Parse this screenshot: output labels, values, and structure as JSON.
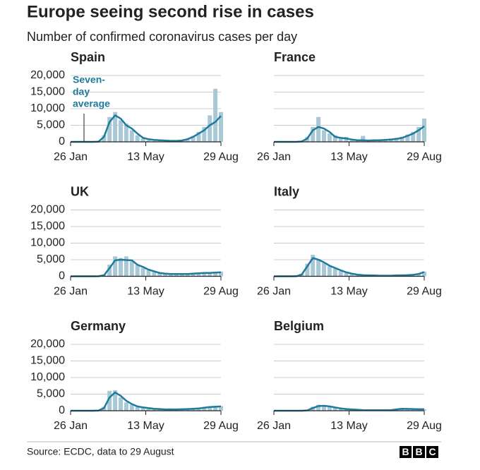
{
  "title": "Europe seeing second rise in cases",
  "subtitle": "Number of confirmed coronavirus cases per day",
  "source": "Source: ECDC, data to 29 August",
  "logo": [
    "B",
    "B",
    "C"
  ],
  "chart_data": [
    {
      "type": "bar-line",
      "title": "Spain",
      "annotation": [
        "Seven-",
        "day",
        "average"
      ],
      "x": [
        0,
        8,
        16,
        24,
        32,
        40,
        48,
        56,
        64,
        72,
        80,
        88,
        96,
        104,
        112,
        120,
        128,
        136,
        144,
        152,
        160,
        168,
        176,
        184,
        192,
        200,
        208,
        216
      ],
      "series": [
        {
          "color": "#a9c8d6",
          "values": [
            0,
            0,
            0,
            0,
            0,
            100,
            2000,
            7500,
            9000,
            6500,
            5500,
            3500,
            2000,
            1000,
            500,
            300,
            200,
            500,
            300,
            200,
            400,
            900,
            1800,
            3000,
            4500,
            8000,
            16000,
            9000
          ]
        },
        {
          "name": "Seven-day average",
          "color": "#1f7a9b",
          "values": [
            0,
            0,
            0,
            0,
            0,
            50,
            1500,
            6000,
            8000,
            7000,
            5000,
            4000,
            2500,
            1200,
            800,
            600,
            500,
            400,
            300,
            300,
            400,
            800,
            1500,
            2500,
            3500,
            5000,
            6000,
            7800
          ]
        }
      ],
      "xlim": [
        0,
        216
      ],
      "xticks": [
        {
          "value": 0,
          "label": "26 Jan"
        },
        {
          "value": 108,
          "label": "13 May"
        },
        {
          "value": 216,
          "label": "29 Aug"
        }
      ],
      "ylim": [
        0,
        20000
      ],
      "yticks": [
        0,
        {
          "value": 5000,
          "label": "5,000"
        },
        {
          "value": 10000,
          "label": "10,000"
        },
        {
          "value": 15000,
          "label": "15,000"
        },
        {
          "value": 20000,
          "label": "20,000"
        }
      ],
      "show_ytick_labels": true,
      "grid": true
    },
    {
      "type": "bar-line",
      "title": "France",
      "x": [
        0,
        8,
        16,
        24,
        32,
        40,
        48,
        56,
        64,
        72,
        80,
        88,
        96,
        104,
        112,
        120,
        128,
        136,
        144,
        152,
        160,
        168,
        176,
        184,
        192,
        200,
        208,
        216
      ],
      "series": [
        {
          "color": "#a9c8d6",
          "values": [
            0,
            0,
            0,
            0,
            0,
            200,
            1500,
            4500,
            7500,
            3500,
            2500,
            2000,
            1000,
            1500,
            500,
            300,
            1800,
            300,
            600,
            400,
            800,
            1000,
            1200,
            1500,
            2200,
            3000,
            4500,
            7000
          ]
        },
        {
          "name": "Seven-day average",
          "color": "#1f7a9b",
          "values": [
            0,
            0,
            0,
            0,
            0,
            100,
            1000,
            3500,
            4500,
            4000,
            3000,
            1500,
            1200,
            1000,
            700,
            500,
            500,
            400,
            500,
            500,
            600,
            700,
            900,
            1200,
            1800,
            2500,
            3500,
            4700
          ]
        }
      ],
      "xlim": [
        0,
        216
      ],
      "xticks": [
        {
          "value": 0,
          "label": "26 Jan"
        },
        {
          "value": 108,
          "label": "13 May"
        },
        {
          "value": 216,
          "label": "29 Aug"
        }
      ],
      "ylim": [
        0,
        20000
      ],
      "yticks": [
        0,
        5000,
        10000,
        15000,
        20000
      ],
      "show_ytick_labels": false,
      "grid": true
    },
    {
      "type": "bar-line",
      "title": "UK",
      "x": [
        0,
        8,
        16,
        24,
        32,
        40,
        48,
        56,
        64,
        72,
        80,
        88,
        96,
        104,
        112,
        120,
        128,
        136,
        144,
        152,
        160,
        168,
        176,
        184,
        192,
        200,
        208,
        216
      ],
      "series": [
        {
          "color": "#a9c8d6",
          "values": [
            0,
            0,
            0,
            0,
            0,
            50,
            500,
            3500,
            6000,
            5500,
            6000,
            4500,
            3500,
            2500,
            1800,
            1400,
            900,
            700,
            600,
            700,
            600,
            800,
            800,
            900,
            1000,
            900,
            1200,
            1400
          ]
        },
        {
          "name": "Seven-day average",
          "color": "#1f7a9b",
          "values": [
            0,
            0,
            0,
            0,
            0,
            20,
            300,
            2500,
            4800,
            5000,
            4900,
            4800,
            3500,
            2800,
            2000,
            1500,
            1000,
            800,
            700,
            700,
            700,
            700,
            800,
            900,
            1000,
            1000,
            1100,
            1200
          ]
        }
      ],
      "xlim": [
        0,
        216
      ],
      "xticks": [
        {
          "value": 0,
          "label": "26 Jan"
        },
        {
          "value": 108,
          "label": "13 May"
        },
        {
          "value": 216,
          "label": "29 Aug"
        }
      ],
      "ylim": [
        0,
        20000
      ],
      "yticks": [
        0,
        {
          "value": 5000,
          "label": "5,000"
        },
        {
          "value": 10000,
          "label": "10,000"
        },
        {
          "value": 15000,
          "label": "15,000"
        },
        {
          "value": 20000,
          "label": "20,000"
        }
      ],
      "show_ytick_labels": true,
      "grid": true
    },
    {
      "type": "bar-line",
      "title": "Italy",
      "x": [
        0,
        8,
        16,
        24,
        32,
        40,
        48,
        56,
        64,
        72,
        80,
        88,
        96,
        104,
        112,
        120,
        128,
        136,
        144,
        152,
        160,
        168,
        176,
        184,
        192,
        200,
        208,
        216
      ],
      "series": [
        {
          "color": "#a9c8d6",
          "values": [
            0,
            0,
            0,
            0,
            50,
            800,
            3800,
            6500,
            5200,
            4000,
            3000,
            2300,
            1600,
            1000,
            700,
            450,
            300,
            250,
            200,
            200,
            200,
            250,
            300,
            350,
            400,
            500,
            900,
            1400
          ]
        },
        {
          "name": "Seven-day average",
          "color": "#1f7a9b",
          "values": [
            0,
            0,
            0,
            0,
            20,
            500,
            3000,
            5500,
            5000,
            4200,
            3200,
            2500,
            1800,
            1200,
            800,
            500,
            350,
            300,
            250,
            200,
            200,
            200,
            250,
            300,
            350,
            450,
            700,
            1300
          ]
        }
      ],
      "xlim": [
        0,
        216
      ],
      "xticks": [
        {
          "value": 0,
          "label": "26 Jan"
        },
        {
          "value": 108,
          "label": "13 May"
        },
        {
          "value": 216,
          "label": "29 Aug"
        }
      ],
      "ylim": [
        0,
        20000
      ],
      "yticks": [
        0,
        5000,
        10000,
        15000,
        20000
      ],
      "show_ytick_labels": false,
      "grid": true
    },
    {
      "type": "bar-line",
      "title": "Germany",
      "x": [
        0,
        8,
        16,
        24,
        32,
        40,
        48,
        56,
        64,
        72,
        80,
        88,
        96,
        104,
        112,
        120,
        128,
        136,
        144,
        152,
        160,
        168,
        176,
        184,
        192,
        200,
        208,
        216
      ],
      "series": [
        {
          "color": "#a9c8d6",
          "values": [
            0,
            0,
            0,
            0,
            0,
            100,
            1200,
            6000,
            6200,
            4000,
            2500,
            1800,
            1200,
            900,
            700,
            500,
            400,
            350,
            700,
            400,
            400,
            500,
            600,
            800,
            1000,
            1300,
            1500,
            1400
          ]
        },
        {
          "name": "Seven-day average",
          "color": "#1f7a9b",
          "values": [
            0,
            0,
            0,
            0,
            0,
            50,
            800,
            4000,
            5500,
            4500,
            3000,
            2000,
            1300,
            1000,
            800,
            600,
            500,
            400,
            400,
            400,
            450,
            500,
            600,
            700,
            900,
            1100,
            1200,
            1300
          ]
        }
      ],
      "xlim": [
        0,
        216
      ],
      "xticks": [
        {
          "value": 0,
          "label": "26 Jan"
        },
        {
          "value": 108,
          "label": "13 May"
        },
        {
          "value": 216,
          "label": "29 Aug"
        }
      ],
      "ylim": [
        0,
        20000
      ],
      "yticks": [
        0,
        {
          "value": 5000,
          "label": "5,000"
        },
        {
          "value": 10000,
          "label": "10,000"
        },
        {
          "value": 15000,
          "label": "15,000"
        },
        {
          "value": 20000,
          "label": "20,000"
        }
      ],
      "show_ytick_labels": true,
      "grid": true
    },
    {
      "type": "bar-line",
      "title": "Belgium",
      "x": [
        0,
        8,
        16,
        24,
        32,
        40,
        48,
        56,
        64,
        72,
        80,
        88,
        96,
        104,
        112,
        120,
        128,
        136,
        144,
        152,
        160,
        168,
        176,
        184,
        192,
        200,
        208,
        216
      ],
      "series": [
        {
          "color": "#a9c8d6",
          "values": [
            0,
            0,
            0,
            0,
            0,
            0,
            200,
            1200,
            1800,
            1600,
            1200,
            900,
            600,
            450,
            350,
            250,
            180,
            150,
            150,
            150,
            180,
            250,
            500,
            700,
            600,
            500,
            450,
            400
          ]
        },
        {
          "name": "Seven-day average",
          "color": "#1f7a9b",
          "values": [
            0,
            0,
            0,
            0,
            0,
            0,
            100,
            800,
            1400,
            1500,
            1300,
            1000,
            700,
            500,
            400,
            300,
            200,
            150,
            150,
            150,
            150,
            200,
            400,
            600,
            550,
            500,
            450,
            450
          ]
        }
      ],
      "xlim": [
        0,
        216
      ],
      "xticks": [
        {
          "value": 0,
          "label": "26 Jan"
        },
        {
          "value": 108,
          "label": "13 May"
        },
        {
          "value": 216,
          "label": "29 Aug"
        }
      ],
      "ylim": [
        0,
        20000
      ],
      "yticks": [
        0,
        5000,
        10000,
        15000,
        20000
      ],
      "show_ytick_labels": false,
      "grid": true
    }
  ]
}
